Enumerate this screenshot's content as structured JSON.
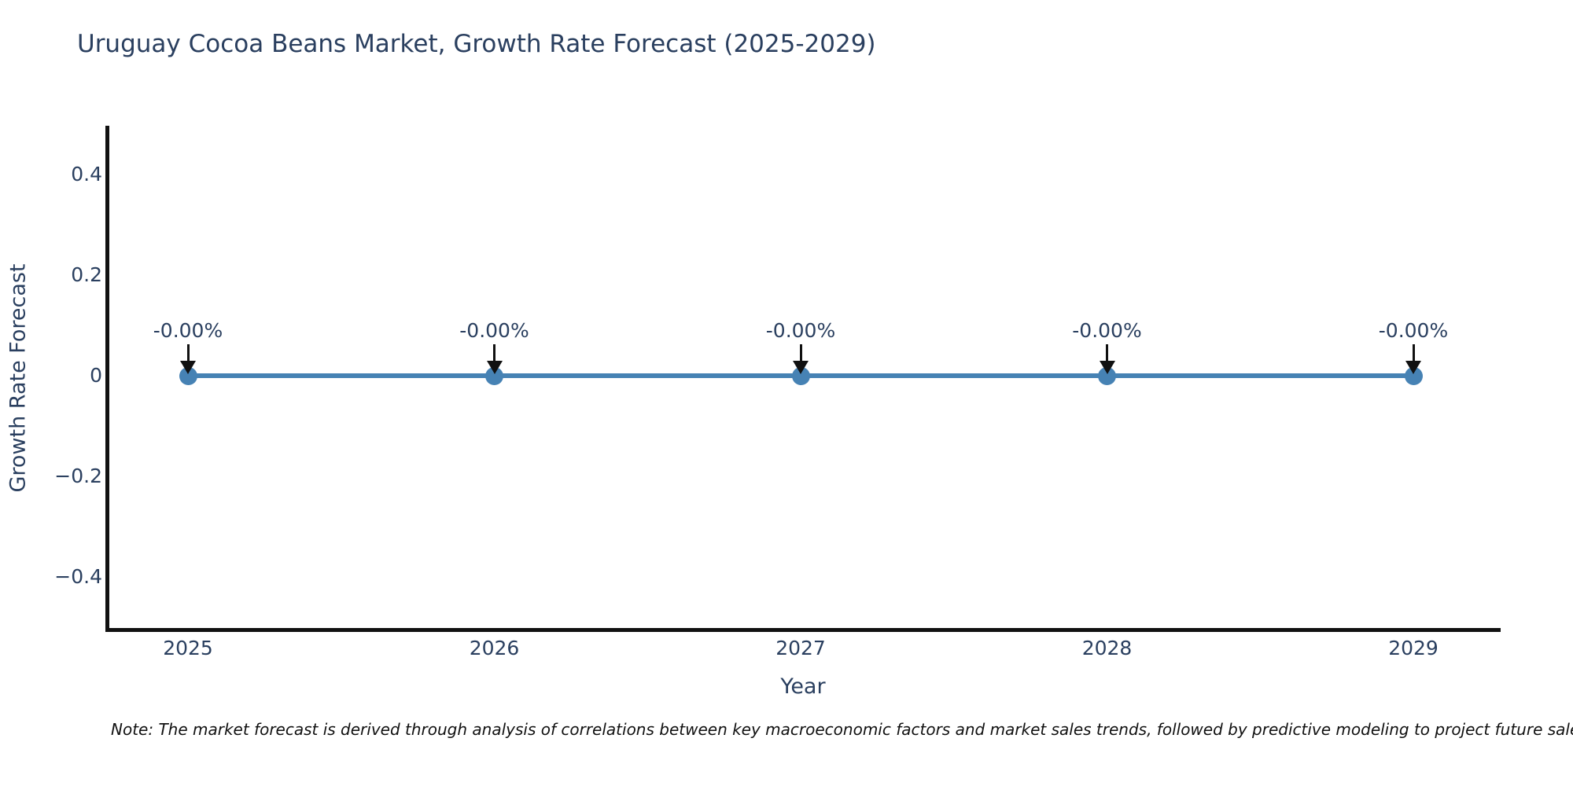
{
  "note": "Note: The market forecast is derived through analysis of correlations between key macroeconomic factors and market sales trends, followed by predictive modeling to project future sales.",
  "colors": {
    "series_blue": "#4682b4",
    "text_slate": "#2a3f5f",
    "arrow_black": "#111111",
    "background": "#ffffff"
  },
  "chart_data": {
    "type": "line",
    "title": "Uruguay Cocoa Beans Market, Growth Rate Forecast (2025-2029)",
    "xlabel": "Year",
    "ylabel": "Growth Rate Forecast",
    "x": [
      "2025",
      "2026",
      "2027",
      "2028",
      "2029"
    ],
    "series": [
      {
        "name": "Growth Rate Forecast",
        "values": [
          0,
          0,
          0,
          0,
          0
        ]
      }
    ],
    "point_labels": [
      "-0.00%",
      "-0.00%",
      "-0.00%",
      "-0.00%",
      "-0.00%"
    ],
    "yticks": [
      0.4,
      0.2,
      0,
      -0.2,
      -0.4
    ],
    "ytick_labels": [
      "0.4",
      "0.2",
      "0",
      "−0.2",
      "−0.4"
    ],
    "ylim": [
      -0.5,
      0.5
    ],
    "grid": false,
    "legend": "none",
    "marker_style": "circle",
    "annotation_arrow": "down"
  }
}
